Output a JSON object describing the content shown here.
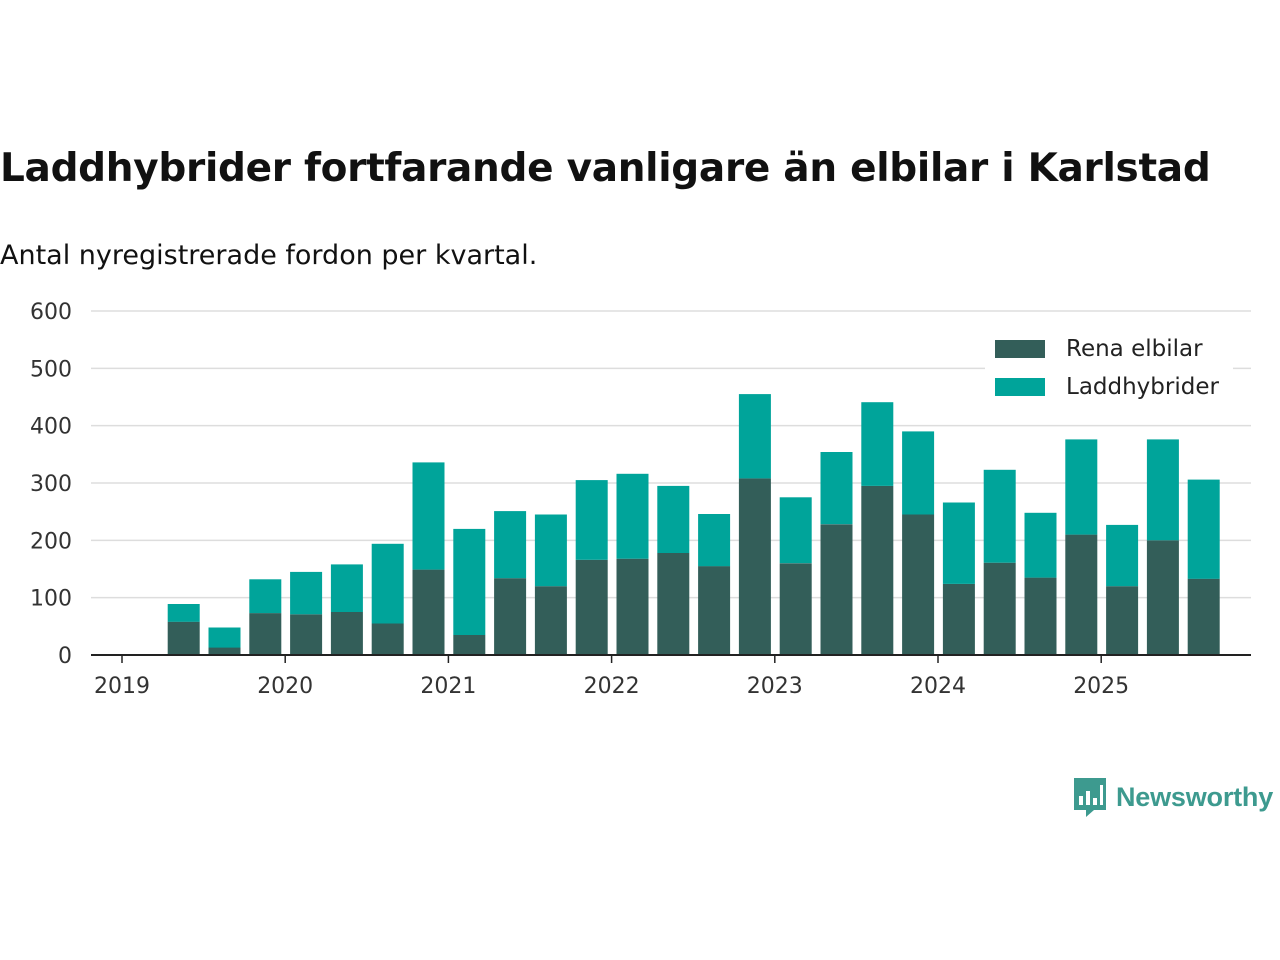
{
  "chart_data": {
    "type": "bar",
    "stacked": true,
    "title": "Laddhybrider fortfarande vanligare än elbilar i Karlstad",
    "subtitle": "Antal nyregistrerade fordon per kvartal.",
    "xlabel": "",
    "ylabel": "",
    "ylim": [
      0,
      600
    ],
    "y_ticks": [
      0,
      100,
      200,
      300,
      400,
      500,
      600
    ],
    "x_ticks": [
      "2019",
      "2020",
      "2021",
      "2022",
      "2023",
      "2024",
      "2025"
    ],
    "grid": true,
    "legend_position": "top-right",
    "categories": [
      "2019 Q2",
      "2019 Q3",
      "2019 Q4",
      "2020 Q1",
      "2020 Q2",
      "2020 Q3",
      "2020 Q4",
      "2021 Q1",
      "2021 Q2",
      "2021 Q3",
      "2021 Q4",
      "2022 Q1",
      "2022 Q2",
      "2022 Q3",
      "2022 Q4",
      "2023 Q1",
      "2023 Q2",
      "2023 Q3",
      "2023 Q4",
      "2024 Q1",
      "2024 Q2",
      "2024 Q3",
      "2024 Q4",
      "2025 Q1",
      "2025 Q2",
      "2025 Q3"
    ],
    "series": [
      {
        "name": "Rena elbilar",
        "color": "#335e59",
        "values": [
          58,
          13,
          73,
          71,
          75,
          55,
          149,
          35,
          134,
          120,
          166,
          168,
          178,
          155,
          308,
          160,
          228,
          295,
          245,
          124,
          161,
          135,
          210,
          120,
          200,
          133
        ]
      },
      {
        "name": "Laddhybrider",
        "color": "#00a49a",
        "values": [
          31,
          35,
          59,
          74,
          83,
          139,
          187,
          185,
          117,
          125,
          139,
          148,
          117,
          91,
          147,
          115,
          126,
          146,
          145,
          142,
          162,
          113,
          166,
          107,
          176,
          173
        ]
      }
    ]
  },
  "brand": {
    "name": "Newsworthy",
    "color": "#3d9a8f"
  }
}
